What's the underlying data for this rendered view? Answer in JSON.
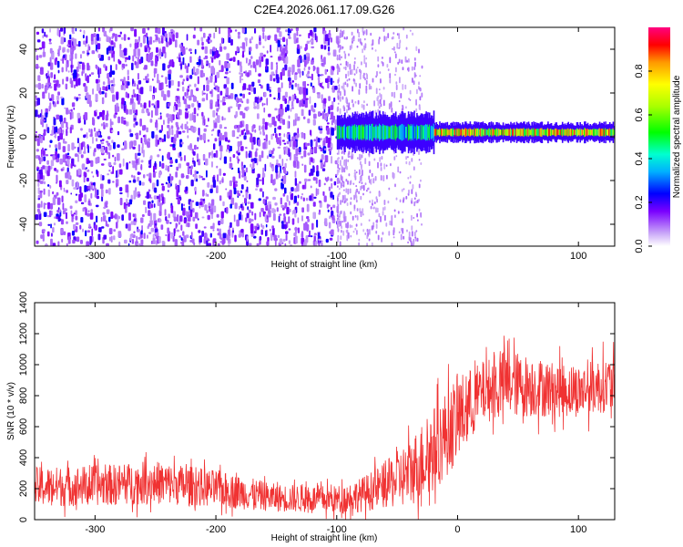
{
  "title": "C2E4.2026.061.17.09.G26",
  "chart_data": [
    {
      "type": "heatmap",
      "name": "spectrogram",
      "xlabel": "Height of straight line (km)",
      "ylabel": "Frequency (Hz)",
      "xlim": [
        -350,
        130
      ],
      "ylim": [
        -50,
        50
      ],
      "xticks": [
        -300,
        -200,
        -100,
        0,
        100
      ],
      "xtick_labels": [
        "-300",
        "-200",
        "-100",
        "0",
        "100"
      ],
      "yticks": [
        -40,
        -20,
        0,
        20,
        40
      ],
      "ytick_labels": [
        "-40",
        "-20",
        "0",
        "20",
        "40"
      ],
      "colorbar": {
        "label": "Normalized spectral amplitude",
        "range": [
          0,
          1
        ],
        "ticks": [
          0.0,
          0.2,
          0.4,
          0.6,
          0.8
        ],
        "tick_labels": [
          "0.0",
          "0.2",
          "0.4",
          "0.6",
          "0.8"
        ]
      },
      "regions": [
        {
          "x": [
            -350,
            -100
          ],
          "description": "broadband noise",
          "amplitude": 0.2
        },
        {
          "x": [
            -100,
            -30
          ],
          "description": "fading noise",
          "amplitude": 0.1
        },
        {
          "x": [
            -100,
            130
          ],
          "frequency": 2,
          "description": "carrier line",
          "amplitude": 0.9
        }
      ]
    },
    {
      "type": "line",
      "name": "snr",
      "xlabel": "Height of straight line (km)",
      "ylabel": "SNR (10 * v/v)",
      "xlim": [
        -350,
        130
      ],
      "ylim": [
        0,
        1400
      ],
      "xticks": [
        -300,
        -200,
        -100,
        0,
        100
      ],
      "xtick_labels": [
        "-300",
        "-200",
        "-100",
        "0",
        "100"
      ],
      "yticks": [
        0,
        200,
        400,
        600,
        800,
        1000,
        1200,
        1400
      ],
      "ytick_labels": [
        "0",
        "200",
        "400",
        "600",
        "800",
        "1000",
        "1200",
        "1400"
      ],
      "color": "#f03232",
      "series": [
        {
          "name": "SNR",
          "x": [
            -350,
            -300,
            -250,
            -200,
            -150,
            -100,
            -80,
            -60,
            -40,
            -20,
            0,
            20,
            40,
            60,
            80,
            100,
            120,
            130
          ],
          "mean": [
            210,
            220,
            240,
            200,
            140,
            130,
            160,
            220,
            300,
            450,
            650,
            820,
            880,
            860,
            840,
            830,
            870,
            870
          ],
          "spread": [
            130,
            130,
            140,
            120,
            90,
            90,
            110,
            150,
            220,
            280,
            280,
            200,
            220,
            200,
            180,
            170,
            180,
            180
          ]
        }
      ]
    }
  ]
}
